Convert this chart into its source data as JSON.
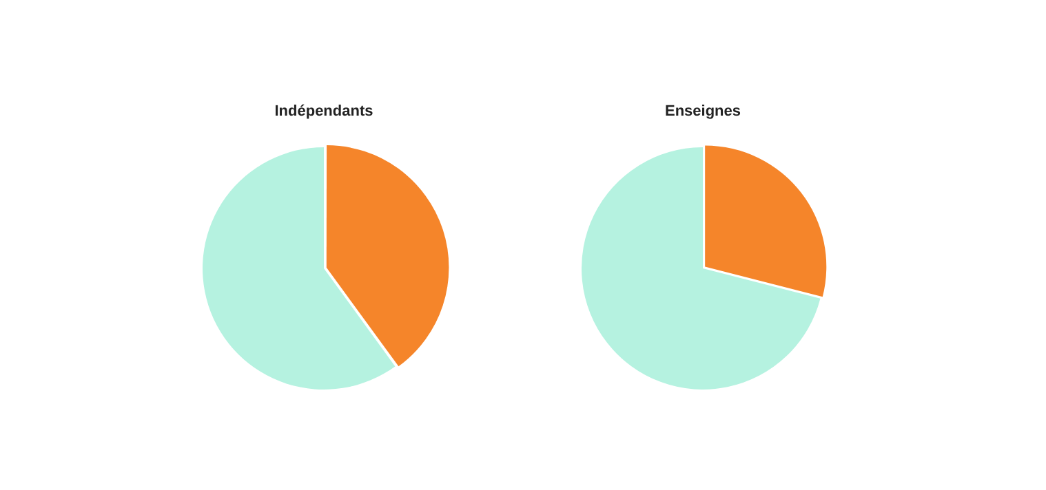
{
  "chart_data": [
    {
      "type": "pie",
      "title": "Indépendants",
      "categories": [
        null,
        null
      ],
      "values": [
        40,
        60
      ],
      "colors": [
        "#f5852a",
        "#b5f2e0"
      ]
    },
    {
      "type": "pie",
      "title": "Enseignes",
      "categories": [
        null,
        null
      ],
      "values": [
        29,
        71
      ],
      "colors": [
        "#f5852a",
        "#b5f2e0"
      ]
    }
  ]
}
